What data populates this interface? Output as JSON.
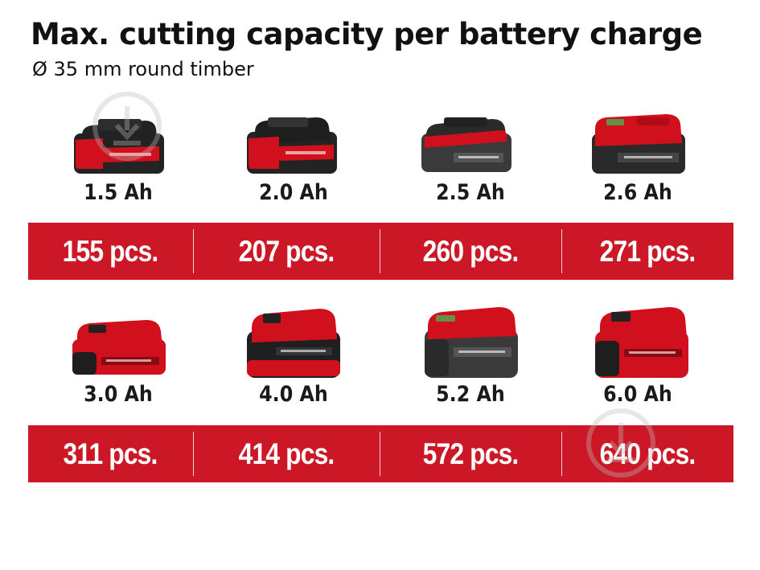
{
  "header": {
    "title": "Max. cutting capacity per battery charge",
    "subtitle": "Ø 35 mm round timber"
  },
  "colors": {
    "brand_red": "#cc1826",
    "battery_body": "#232323",
    "text": "#111111"
  },
  "rows": [
    {
      "items": [
        {
          "capacity": "1.5 Ah",
          "pieces": "155 pcs.",
          "icon": "battery-1-5ah-icon"
        },
        {
          "capacity": "2.0 Ah",
          "pieces": "207 pcs.",
          "icon": "battery-2-0ah-icon"
        },
        {
          "capacity": "2.5 Ah",
          "pieces": "260 pcs.",
          "icon": "battery-2-5ah-icon"
        },
        {
          "capacity": "2.6 Ah",
          "pieces": "271 pcs.",
          "icon": "battery-2-6ah-icon"
        }
      ]
    },
    {
      "items": [
        {
          "capacity": "3.0 Ah",
          "pieces": "311 pcs.",
          "icon": "battery-3-0ah-icon"
        },
        {
          "capacity": "4.0 Ah",
          "pieces": "414 pcs.",
          "icon": "battery-4-0ah-icon"
        },
        {
          "capacity": "5.2 Ah",
          "pieces": "572 pcs.",
          "icon": "battery-5-2ah-icon"
        },
        {
          "capacity": "6.0 Ah",
          "pieces": "640 pcs.",
          "icon": "battery-6-0ah-icon"
        }
      ]
    }
  ]
}
